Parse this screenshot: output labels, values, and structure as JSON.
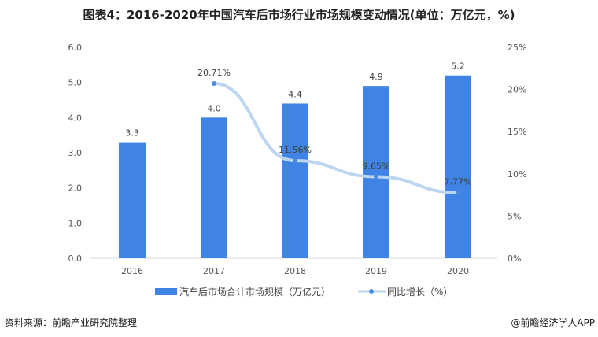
{
  "chart_data": {
    "type": "bar+line",
    "title": "图表4：2016-2020年中国汽车后市场行业市场规模变动情况(单位：万亿元，%)",
    "categories": [
      "2016",
      "2017",
      "2018",
      "2019",
      "2020"
    ],
    "series": [
      {
        "name": "汽车后市场合计市场规模（万亿元）",
        "type": "bar",
        "axis": "left",
        "values": [
          3.3,
          4.0,
          4.4,
          4.9,
          5.2
        ],
        "labels": [
          "3.3",
          "4.0",
          "4.4",
          "4.9",
          "5.2"
        ],
        "color": "#3f84e5"
      },
      {
        "name": "同比增长（%）",
        "type": "line",
        "axis": "right",
        "values": [
          null,
          20.71,
          11.56,
          9.65,
          7.77
        ],
        "labels": [
          "",
          "20.71%",
          "11.56%",
          "9.65%",
          "7.77%"
        ],
        "color": "#bcd6f2",
        "marker_color": "#4a8de0"
      }
    ],
    "left_axis": {
      "ylim": [
        0,
        6
      ],
      "ticks": [
        "0.0",
        "1.0",
        "2.0",
        "3.0",
        "4.0",
        "5.0",
        "6.0"
      ]
    },
    "right_axis": {
      "ylim": [
        0,
        25
      ],
      "ticks": [
        "0%",
        "5%",
        "10%",
        "15%",
        "20%",
        "25%"
      ]
    },
    "grid": false,
    "legend": "bottom"
  },
  "footer": {
    "source": "资料来源：前瞻产业研究院整理",
    "brand": "@前瞻经济学人APP"
  }
}
